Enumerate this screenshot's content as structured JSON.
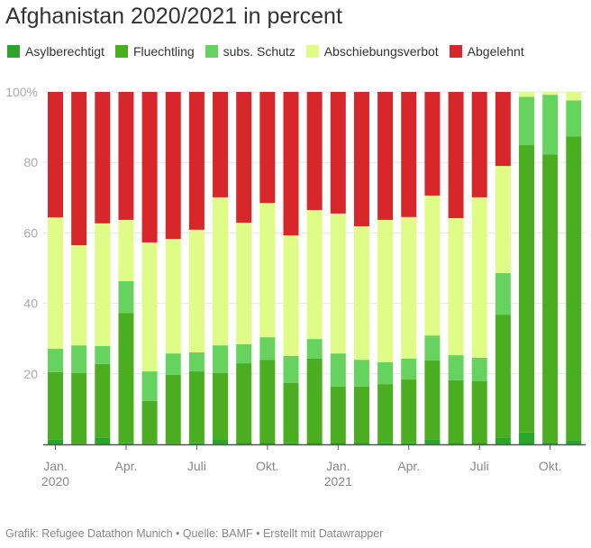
{
  "title": "Afghanistan 2020/2021 in percent",
  "footer": "Grafik: Refugee Datathon Munich • Quelle: BAMF • Erstellt mit Datawrapper",
  "legend": [
    {
      "label": "Asylberechtigt",
      "color": "#2aa52a"
    },
    {
      "label": "Fluechtling",
      "color": "#4aae20"
    },
    {
      "label": "subs. Schutz",
      "color": "#66d35e"
    },
    {
      "label": "Abschiebungsverbot",
      "color": "#dffc86"
    },
    {
      "label": "Abgelehnt",
      "color": "#d7272a"
    }
  ],
  "chart_data": {
    "type": "bar",
    "stacked": true,
    "title": "Afghanistan 2020/2021 in percent",
    "xlabel": "",
    "ylabel": "",
    "ylim": [
      0,
      100
    ],
    "grid": true,
    "legend_position": "top-left",
    "y_ticks": [
      "100%",
      "80",
      "60",
      "40",
      "20"
    ],
    "y_tick_values": [
      100,
      80,
      60,
      40,
      20
    ],
    "x_ticks": [
      {
        "label": "Jan.",
        "sub": "2020",
        "index": 0
      },
      {
        "label": "Apr.",
        "sub": "",
        "index": 3
      },
      {
        "label": "Juli",
        "sub": "",
        "index": 6
      },
      {
        "label": "Okt.",
        "sub": "",
        "index": 9
      },
      {
        "label": "Jan.",
        "sub": "2021",
        "index": 12
      },
      {
        "label": "Apr.",
        "sub": "",
        "index": 15
      },
      {
        "label": "Juli",
        "sub": "",
        "index": 18
      },
      {
        "label": "Okt.",
        "sub": "",
        "index": 21
      }
    ],
    "categories": [
      "2020-01",
      "2020-02",
      "2020-03",
      "2020-04",
      "2020-05",
      "2020-06",
      "2020-07",
      "2020-08",
      "2020-09",
      "2020-10",
      "2020-11",
      "2020-12",
      "2021-01",
      "2021-02",
      "2021-03",
      "2021-04",
      "2021-05",
      "2021-06",
      "2021-07",
      "2021-08",
      "2021-09",
      "2021-10",
      "2021-11"
    ],
    "series": [
      {
        "name": "Asylberechtigt",
        "values": [
          1.3,
          0.2,
          2.0,
          0.3,
          0.2,
          0.2,
          0.3,
          1.5,
          0.5,
          0.5,
          0.3,
          0.5,
          0.5,
          0.5,
          0.3,
          0.3,
          1.3,
          0.5,
          0.5,
          1.8,
          3.4,
          0.6,
          1.2
        ]
      },
      {
        "name": "Fluechtling",
        "values": [
          19.2,
          20.0,
          20.8,
          37.0,
          12.1,
          19.5,
          20.4,
          18.7,
          22.5,
          23.5,
          17.1,
          23.8,
          15.9,
          15.9,
          16.8,
          18.1,
          22.5,
          17.7,
          17.4,
          35.0,
          81.5,
          81.7,
          86.2
        ]
      },
      {
        "name": "subs. Schutz",
        "values": [
          6.6,
          7.9,
          5.1,
          9.0,
          8.4,
          6.1,
          5.4,
          7.9,
          5.4,
          6.4,
          7.7,
          5.6,
          9.4,
          7.6,
          6.2,
          5.9,
          7.1,
          7.1,
          6.7,
          11.8,
          13.7,
          16.9,
          10.2
        ]
      },
      {
        "name": "Abschiebungsverbot",
        "values": [
          37.3,
          28.4,
          34.8,
          17.4,
          36.6,
          32.5,
          34.8,
          42.0,
          34.5,
          38.1,
          34.2,
          36.6,
          39.7,
          37.9,
          40.4,
          40.2,
          39.7,
          38.9,
          45.5,
          30.4,
          1.4,
          0.8,
          2.4
        ]
      },
      {
        "name": "Abgelehnt",
        "values": [
          35.6,
          43.5,
          37.3,
          36.3,
          42.7,
          41.7,
          39.1,
          29.9,
          37.1,
          31.5,
          40.7,
          33.5,
          34.5,
          38.1,
          36.3,
          35.5,
          29.4,
          35.8,
          29.9,
          21.0,
          0.0,
          0.0,
          0.0
        ]
      }
    ]
  }
}
